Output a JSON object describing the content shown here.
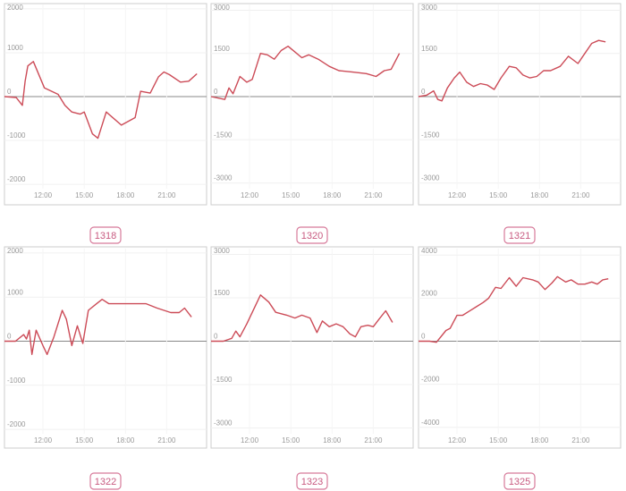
{
  "chart_data": [
    {
      "type": "line",
      "title": "1318",
      "color": "#cc4b57",
      "grid": true,
      "xlim": [
        9.2,
        23.9
      ],
      "xticks": [
        {
          "value": 12,
          "label": "12:00"
        },
        {
          "value": 15,
          "label": "15:00"
        },
        {
          "value": 18,
          "label": "18:00"
        },
        {
          "value": 21,
          "label": "21:00"
        }
      ],
      "ylim": [
        -2100,
        2100
      ],
      "yticks": [
        2000,
        1000,
        0,
        -1000,
        -2000
      ],
      "x": [
        9.2,
        10.05,
        10.5,
        10.7,
        10.9,
        11.3,
        12.1,
        13.1,
        13.6,
        14.1,
        14.7,
        15.0,
        15.6,
        16.0,
        16.6,
        17.7,
        18.7,
        19.1,
        19.8,
        20.4,
        20.8,
        21.2,
        22.0,
        22.6,
        23.2
      ],
      "values": [
        0,
        -20,
        -200,
        350,
        700,
        800,
        200,
        50,
        -200,
        -350,
        -400,
        -350,
        -850,
        -950,
        -350,
        -650,
        -480,
        120,
        80,
        450,
        560,
        500,
        330,
        350,
        520
      ]
    },
    {
      "type": "line",
      "title": "1320",
      "color": "#cc4b57",
      "grid": true,
      "xlim": [
        9.2,
        23.9
      ],
      "xticks": [
        {
          "value": 12,
          "label": "12:00"
        },
        {
          "value": 15,
          "label": "15:00"
        },
        {
          "value": 18,
          "label": "18:00"
        },
        {
          "value": 21,
          "label": "21:00"
        }
      ],
      "ylim": [
        -3200,
        3200
      ],
      "yticks": [
        3000,
        1500,
        0,
        -1500,
        -3000
      ],
      "x": [
        9.2,
        10.2,
        10.5,
        10.8,
        11.3,
        11.8,
        12.2,
        12.8,
        13.3,
        13.8,
        14.3,
        14.8,
        15.3,
        15.8,
        16.3,
        17.0,
        17.8,
        18.5,
        19.5,
        20.5,
        21.2,
        21.8,
        22.3,
        22.9
      ],
      "values": [
        0,
        -100,
        300,
        100,
        700,
        500,
        600,
        1500,
        1450,
        1300,
        1600,
        1750,
        1550,
        1350,
        1450,
        1300,
        1050,
        900,
        850,
        800,
        700,
        900,
        950,
        1500
      ]
    },
    {
      "type": "line",
      "title": "1321",
      "color": "#cc4b57",
      "grid": true,
      "xlim": [
        9.2,
        23.9
      ],
      "xticks": [
        {
          "value": 12,
          "label": "12:00"
        },
        {
          "value": 15,
          "label": "15:00"
        },
        {
          "value": 18,
          "label": "18:00"
        },
        {
          "value": 21,
          "label": "21:00"
        }
      ],
      "ylim": [
        -3200,
        3200
      ],
      "yticks": [
        3000,
        1500,
        0,
        -1500,
        -3000
      ],
      "x": [
        9.2,
        9.8,
        10.3,
        10.6,
        10.9,
        11.3,
        11.8,
        12.2,
        12.7,
        13.2,
        13.7,
        14.2,
        14.7,
        15.2,
        15.8,
        16.3,
        16.8,
        17.3,
        17.8,
        18.3,
        18.8,
        19.5,
        20.1,
        20.8,
        21.3,
        21.8,
        22.3,
        22.8
      ],
      "values": [
        0,
        50,
        200,
        -100,
        -150,
        300,
        650,
        850,
        500,
        350,
        450,
        400,
        250,
        650,
        1050,
        1000,
        750,
        650,
        700,
        900,
        900,
        1050,
        1400,
        1150,
        1500,
        1850,
        1950,
        1900
      ]
    },
    {
      "type": "line",
      "title": "1322",
      "color": "#cc4b57",
      "grid": true,
      "xlim": [
        9.2,
        23.9
      ],
      "xticks": [
        {
          "value": 12,
          "label": "12:00"
        },
        {
          "value": 15,
          "label": "15:00"
        },
        {
          "value": 18,
          "label": "18:00"
        },
        {
          "value": 21,
          "label": "21:00"
        }
      ],
      "ylim": [
        -2100,
        2100
      ],
      "yticks": [
        2000,
        1000,
        0,
        -1000,
        -2000
      ],
      "x": [
        9.2,
        10.0,
        10.6,
        10.8,
        11.0,
        11.2,
        11.5,
        12.0,
        12.3,
        12.8,
        13.4,
        13.7,
        14.1,
        14.5,
        14.9,
        15.3,
        15.9,
        16.3,
        16.8,
        17.5,
        18.5,
        19.5,
        20.3,
        21.3,
        21.9,
        22.3,
        22.8
      ],
      "values": [
        0,
        0,
        150,
        50,
        250,
        -300,
        250,
        -100,
        -300,
        100,
        700,
        500,
        -100,
        350,
        -50,
        700,
        850,
        950,
        850,
        850,
        850,
        850,
        750,
        650,
        650,
        750,
        550
      ]
    },
    {
      "type": "line",
      "title": "1323",
      "color": "#cc4b57",
      "grid": true,
      "xlim": [
        9.2,
        23.9
      ],
      "xticks": [
        {
          "value": 12,
          "label": "12:00"
        },
        {
          "value": 15,
          "label": "15:00"
        },
        {
          "value": 18,
          "label": "18:00"
        },
        {
          "value": 21,
          "label": "21:00"
        }
      ],
      "ylim": [
        -3200,
        3200
      ],
      "yticks": [
        3000,
        1500,
        0,
        -1500,
        -3000
      ],
      "x": [
        9.2,
        10.1,
        10.7,
        11.0,
        11.3,
        11.8,
        12.4,
        12.8,
        13.4,
        13.9,
        14.7,
        15.3,
        15.8,
        16.4,
        16.9,
        17.3,
        17.8,
        18.3,
        18.8,
        19.3,
        19.7,
        20.1,
        20.6,
        21.0,
        21.4,
        21.9,
        22.4
      ],
      "values": [
        0,
        0,
        100,
        350,
        150,
        600,
        1200,
        1600,
        1350,
        1000,
        900,
        800,
        900,
        800,
        300,
        700,
        500,
        600,
        500,
        250,
        150,
        500,
        550,
        500,
        750,
        1050,
        650
      ]
    },
    {
      "type": "line",
      "title": "1325",
      "color": "#cc4b57",
      "grid": true,
      "xlim": [
        9.2,
        23.9
      ],
      "xticks": [
        {
          "value": 12,
          "label": "12:00"
        },
        {
          "value": 15,
          "label": "15:00"
        },
        {
          "value": 18,
          "label": "18:00"
        },
        {
          "value": 21,
          "label": "21:00"
        }
      ],
      "ylim": [
        -4300,
        4300
      ],
      "yticks": [
        4000,
        2000,
        0,
        -2000,
        -4000
      ],
      "x": [
        9.2,
        10.0,
        10.5,
        11.2,
        11.5,
        12.0,
        12.4,
        12.9,
        13.4,
        13.9,
        14.3,
        14.8,
        15.2,
        15.8,
        16.3,
        16.8,
        17.5,
        17.9,
        18.4,
        18.9,
        19.3,
        19.9,
        20.3,
        20.8,
        21.3,
        21.8,
        22.2,
        22.6,
        23.0
      ],
      "values": [
        0,
        0,
        -50,
        500,
        600,
        1200,
        1200,
        1400,
        1600,
        1800,
        2000,
        2500,
        2450,
        2950,
        2550,
        2950,
        2850,
        2750,
        2400,
        2700,
        3000,
        2750,
        2850,
        2650,
        2650,
        2750,
        2650,
        2850,
        2900
      ]
    }
  ]
}
